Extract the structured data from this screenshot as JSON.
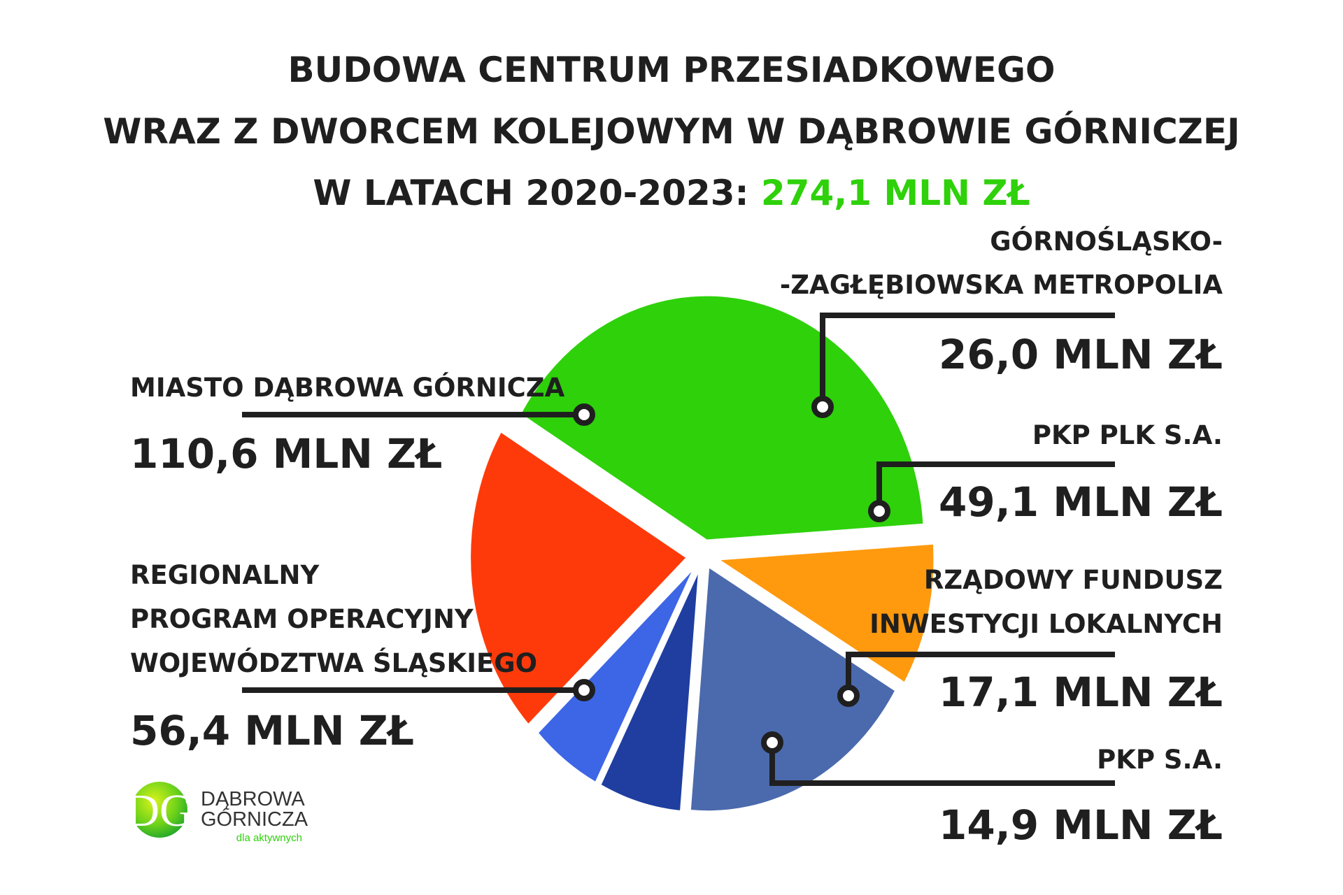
{
  "title": {
    "line1": "BUDOWA CENTRUM PRZESIADKOWEGO",
    "line2": "WRAZ Z DWORCEM KOLEJOWYM W DĄBROWIE GÓRNICZEJ",
    "line3_prefix": "W LATACH 2020-2023: ",
    "line3_total": "274,1 MLN ZŁ"
  },
  "colors": {
    "accent": "#2ed10a",
    "text": "#1f1f1f",
    "leader": "#1f1f1f"
  },
  "chart_data": {
    "type": "pie",
    "unit": "MLN ZŁ",
    "total": 274.1,
    "slices": [
      {
        "name": "Miasto Dąbrowa Górnicza",
        "label_lines": [
          "MIASTO DĄBROWA GÓRNICZA"
        ],
        "value": 110.6,
        "value_label": "110,6 MLN ZŁ",
        "color": "#2ed10a"
      },
      {
        "name": "Górnośląsko-Zagłębiowska Metropolia",
        "label_lines": [
          "GÓRNOŚLĄSKO-",
          "-ZAGŁĘBIOWSKA METROPOLIA"
        ],
        "value": 26.0,
        "value_label": "26,0 MLN ZŁ",
        "color": "#ff9a0e"
      },
      {
        "name": "PKP PLK S.A.",
        "label_lines": [
          "PKP PLK S.A."
        ],
        "value": 49.1,
        "value_label": "49,1 MLN ZŁ",
        "color": "#4b6aad"
      },
      {
        "name": "Rządowy Fundusz Inwestycji Lokalnych",
        "label_lines": [
          "RZĄDOWY FUNDUSZ",
          "INWESTYCJI LOKALNYCH"
        ],
        "value": 17.1,
        "value_label": "17,1 MLN ZŁ",
        "color": "#1f3ea0"
      },
      {
        "name": "PKP S.A.",
        "label_lines": [
          "PKP S.A."
        ],
        "value": 14.9,
        "value_label": "14,9 MLN ZŁ",
        "color": "#3d66e6"
      },
      {
        "name": "Regionalny Program Operacyjny Województwa Śląskiego",
        "label_lines": [
          "REGIONALNY",
          "PROGRAM OPERACYJNY",
          "WOJEWÓDZTWA ŚLĄSKIEGO"
        ],
        "value": 56.4,
        "value_label": "56,4 MLN ZŁ",
        "color": "#ff3a0a"
      }
    ]
  },
  "logo": {
    "mark": "DG",
    "line1": "DĄBROWA",
    "line2": "GÓRNICZA",
    "tagline": "dla aktywnych"
  }
}
